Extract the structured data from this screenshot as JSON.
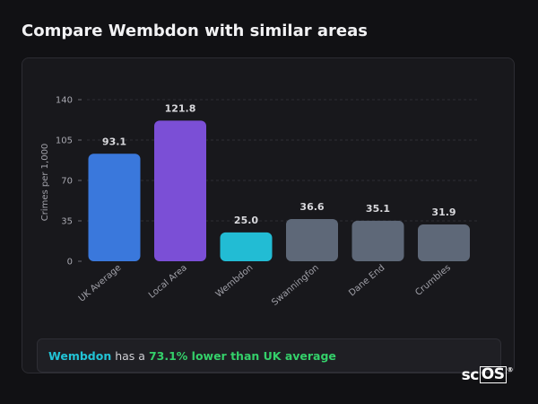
{
  "page": {
    "title": "Compare Wembdon with similar areas"
  },
  "summary": {
    "area_name": "Wembdon",
    "middle_text": "has a",
    "highlight": "73.1% lower than UK average"
  },
  "logo": {
    "prefix": "sc",
    "boxed": "OS",
    "mark": "®"
  },
  "chart_data": {
    "type": "bar",
    "categories": [
      "UK Average",
      "Local Area",
      "Wembdon",
      "Swanningfon",
      "Dane End",
      "Crumbles"
    ],
    "values": [
      93.1,
      121.8,
      25.0,
      36.6,
      35.1,
      31.9
    ],
    "value_labels": [
      "93.1",
      "121.8",
      "25.0",
      "36.6",
      "35.1",
      "31.9"
    ],
    "colors": [
      "#3a78dc",
      "#7b4fd6",
      "#22bcd4",
      "#5e6878",
      "#5e6878",
      "#5e6878"
    ],
    "ylabel": "Crimes per 1,000",
    "xlabel": "",
    "ylim": [
      0,
      140
    ],
    "yticks": [
      0,
      35,
      70,
      105,
      140
    ],
    "grid": true
  }
}
